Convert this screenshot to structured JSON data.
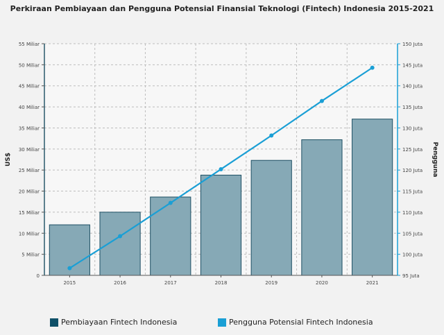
{
  "chart_data": {
    "type": "bar+line",
    "title": "Perkiraan Pembiayaan dan Pengguna Potensial Finansial Teknologi (Fintech) Indonesia 2015-2021",
    "categories": [
      "2015",
      "2016",
      "2017",
      "2018",
      "2019",
      "2020",
      "2021"
    ],
    "series": [
      {
        "name": "Pembiayaan Fintech Indonesia",
        "type": "bar",
        "axis": "left",
        "color": "#86a9b6",
        "stroke": "#1d4f63",
        "legend_color": "#0f5068",
        "values": [
          12,
          15,
          18.6,
          23.8,
          27.3,
          32.2,
          37.1
        ]
      },
      {
        "name": "Pengguna Potensial Fintech Indonesia",
        "type": "line",
        "axis": "right",
        "color": "#1a9fd5",
        "values": [
          96.7,
          104.3,
          112.2,
          120.2,
          128.2,
          136.4,
          144.3
        ]
      }
    ],
    "left_axis": {
      "label": "US$",
      "ylim": [
        0,
        55
      ],
      "ticks": [
        {
          "v": 0,
          "t": "0"
        },
        {
          "v": 5,
          "t": "5 Miliar"
        },
        {
          "v": 10,
          "t": "10 Miliar"
        },
        {
          "v": 15,
          "t": "15 Miliar"
        },
        {
          "v": 20,
          "t": "20 Miliar"
        },
        {
          "v": 25,
          "t": "25 Miliar"
        },
        {
          "v": 30,
          "t": "30 Miliar"
        },
        {
          "v": 35,
          "t": "35 Miliar"
        },
        {
          "v": 40,
          "t": "40 Miliar"
        },
        {
          "v": 45,
          "t": "45 Miliar"
        },
        {
          "v": 50,
          "t": "50 Miliar"
        },
        {
          "v": 55,
          "t": "55 Miliar"
        }
      ]
    },
    "right_axis": {
      "label": "Pengguna",
      "ylim": [
        95,
        150
      ],
      "ticks": [
        {
          "v": 95,
          "t": "95 Juta"
        },
        {
          "v": 100,
          "t": "100 Juta"
        },
        {
          "v": 105,
          "t": "105 Juta"
        },
        {
          "v": 110,
          "t": "110 Juta"
        },
        {
          "v": 115,
          "t": "115 Juta"
        },
        {
          "v": 120,
          "t": "120 Juta"
        },
        {
          "v": 125,
          "t": "125 Juta"
        },
        {
          "v": 130,
          "t": "130 Juta"
        },
        {
          "v": 135,
          "t": "135 Juta"
        },
        {
          "v": 140,
          "t": "140 Juta"
        },
        {
          "v": 145,
          "t": "145 Juta"
        },
        {
          "v": 150,
          "t": "150 Juta"
        }
      ]
    },
    "grid": true,
    "legend_position": "bottom"
  }
}
